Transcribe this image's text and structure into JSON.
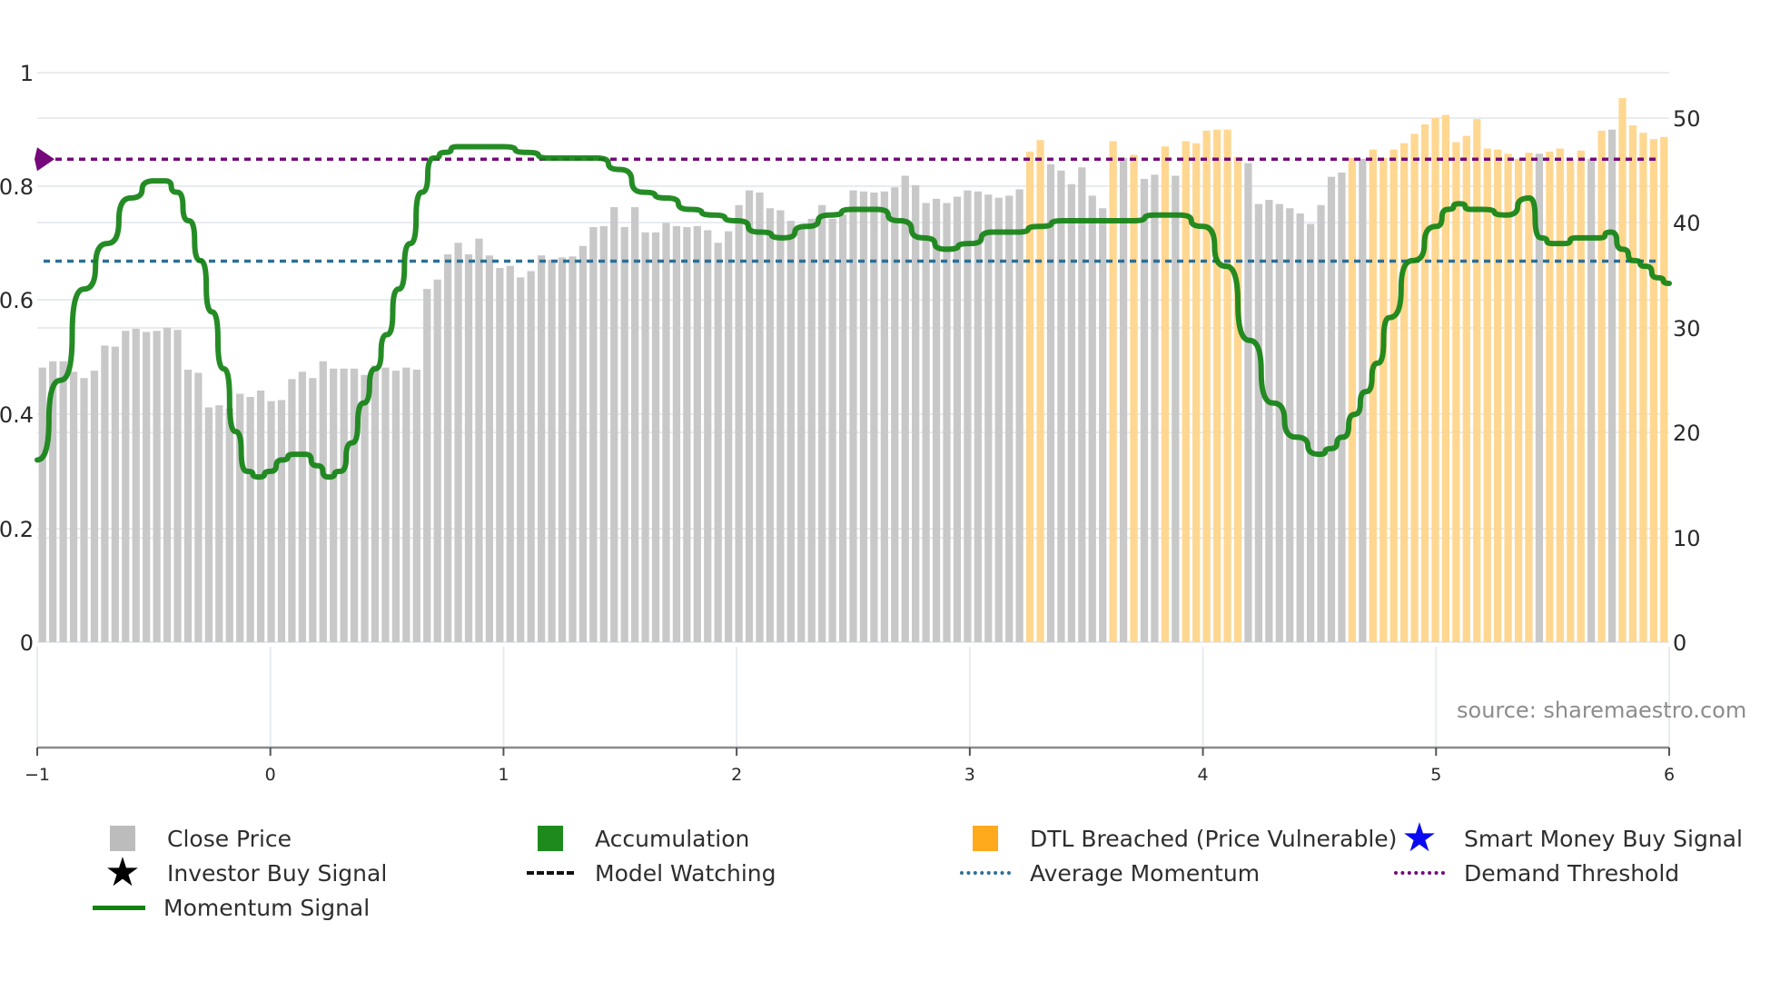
{
  "chart_data": {
    "type": "bar",
    "title": "",
    "xlabel": "",
    "ylabel_left": "",
    "ylabel_right": "",
    "x_axis": {
      "range": [
        -1,
        6
      ],
      "ticks": [
        "−1",
        "0",
        "1",
        "2",
        "3",
        "4",
        "5",
        "6"
      ]
    },
    "y_left": {
      "range": [
        0,
        1
      ],
      "ticks": [
        "0",
        "0.2",
        "0.4",
        "0.6",
        "0.8",
        "1"
      ]
    },
    "y_right": {
      "range": [
        0,
        62.5
      ],
      "ticks": [
        "0",
        "10",
        "20",
        "30",
        "40",
        "50"
      ]
    },
    "grid": true,
    "legend_position": "bottom",
    "annotation": "source: sharemaestro.com",
    "series": [
      {
        "name": "Close Price",
        "type": "bar",
        "axis": "right",
        "color": "#c8c8c8",
        "values": [
          26.2,
          26.8,
          26.8,
          25.8,
          25.2,
          25.9,
          28.3,
          28.2,
          29.7,
          29.9,
          29.6,
          29.7,
          30.0,
          29.8,
          26.0,
          25.7,
          22.4,
          22.6,
          22.3,
          23.7,
          23.4,
          24.0,
          23.0,
          23.1,
          25.1,
          25.8,
          25.2,
          26.8,
          26.1,
          26.1,
          26.1,
          25.5,
          26.4,
          26.2,
          25.9,
          26.2,
          26.0,
          33.7,
          34.6,
          37.0,
          38.1,
          37.0,
          38.5,
          36.9,
          35.7,
          35.9,
          34.8,
          35.4,
          36.9,
          36.5,
          36.7,
          36.8,
          37.8,
          39.6,
          39.7,
          41.5,
          39.6,
          41.5,
          39.1,
          39.1,
          40.0,
          39.7,
          39.6,
          39.7,
          39.3,
          38.1,
          39.2,
          41.7,
          43.1,
          42.9,
          41.4,
          41.2,
          40.2,
          39.6,
          40.4,
          41.7,
          40.4,
          40.8,
          43.1,
          43.0,
          42.9,
          43.0,
          43.4,
          44.5,
          43.6,
          41.9,
          42.3,
          41.9,
          42.5,
          43.1,
          43.0,
          42.7,
          42.4,
          42.6,
          43.2,
          46.8,
          47.9,
          45.6,
          45.0,
          43.7,
          45.3,
          42.6,
          41.4,
          47.8,
          46.2,
          46.5,
          44.2,
          44.6,
          47.3,
          44.5,
          47.8,
          47.6,
          48.8,
          48.9,
          48.9,
          46.3,
          45.7,
          41.8,
          42.2,
          41.8,
          41.4,
          40.9,
          39.9,
          41.7,
          44.4,
          44.8,
          46.2,
          46.1,
          47.0,
          46.2,
          47.0,
          47.6,
          48.5,
          49.4,
          50.0,
          50.3,
          47.7,
          48.3,
          49.9,
          47.1,
          47.0,
          46.6,
          46.1,
          46.7,
          46.6,
          46.8,
          47.1,
          46.1,
          46.9,
          46.1,
          48.8,
          48.9,
          51.9,
          49.3,
          48.6,
          48.0,
          48.2
        ],
        "dtl_breached": [
          0,
          0,
          0,
          0,
          0,
          0,
          0,
          0,
          0,
          0,
          0,
          0,
          0,
          0,
          0,
          0,
          0,
          0,
          0,
          0,
          0,
          0,
          0,
          0,
          0,
          0,
          0,
          0,
          0,
          0,
          0,
          0,
          0,
          0,
          0,
          0,
          0,
          0,
          0,
          0,
          0,
          0,
          0,
          0,
          0,
          0,
          0,
          0,
          0,
          0,
          0,
          0,
          0,
          0,
          0,
          0,
          0,
          0,
          0,
          0,
          0,
          0,
          0,
          0,
          0,
          0,
          0,
          0,
          0,
          0,
          0,
          0,
          0,
          0,
          0,
          0,
          0,
          0,
          0,
          0,
          0,
          0,
          0,
          0,
          0,
          0,
          0,
          0,
          0,
          0,
          0,
          0,
          0,
          0,
          0,
          1,
          1,
          0,
          0,
          0,
          0,
          0,
          0,
          1,
          0,
          1,
          0,
          0,
          1,
          0,
          1,
          1,
          1,
          1,
          1,
          1,
          0,
          0,
          0,
          0,
          0,
          0,
          0,
          0,
          0,
          0,
          1,
          0,
          1,
          1,
          1,
          1,
          1,
          1,
          1,
          1,
          1,
          1,
          1,
          1,
          1,
          1,
          1,
          1,
          0,
          1,
          1,
          1,
          1,
          0,
          1,
          0,
          1,
          1,
          1,
          1,
          1
        ]
      },
      {
        "name": "Momentum Signal",
        "type": "line",
        "axis": "left",
        "color": "#138a13",
        "x": [
          -1.0,
          -0.9,
          -0.8,
          -0.7,
          -0.6,
          -0.5,
          -0.45,
          -0.4,
          -0.35,
          -0.3,
          -0.25,
          -0.2,
          -0.15,
          -0.1,
          -0.05,
          0.0,
          0.05,
          0.1,
          0.15,
          0.2,
          0.25,
          0.3,
          0.35,
          0.4,
          0.45,
          0.5,
          0.55,
          0.6,
          0.65,
          0.7,
          0.75,
          0.8,
          0.85,
          0.9,
          0.95,
          1.0,
          1.1,
          1.2,
          1.3,
          1.4,
          1.5,
          1.6,
          1.7,
          1.8,
          1.9,
          2.0,
          2.1,
          2.2,
          2.3,
          2.4,
          2.5,
          2.6,
          2.7,
          2.8,
          2.9,
          3.0,
          3.1,
          3.2,
          3.3,
          3.4,
          3.5,
          3.6,
          3.7,
          3.8,
          3.9,
          4.0,
          4.1,
          4.2,
          4.3,
          4.4,
          4.5,
          4.55,
          4.6,
          4.65,
          4.7,
          4.75,
          4.8,
          4.9,
          5.0,
          5.05,
          5.1,
          5.15,
          5.2,
          5.3,
          5.4,
          5.45,
          5.5,
          5.55,
          5.6,
          5.7,
          5.75,
          5.8,
          5.85,
          5.9,
          5.95,
          6.0
        ],
        "values": [
          0.32,
          0.46,
          0.62,
          0.7,
          0.78,
          0.81,
          0.81,
          0.79,
          0.74,
          0.67,
          0.58,
          0.48,
          0.37,
          0.3,
          0.29,
          0.3,
          0.32,
          0.33,
          0.33,
          0.31,
          0.29,
          0.3,
          0.35,
          0.42,
          0.48,
          0.54,
          0.62,
          0.7,
          0.79,
          0.85,
          0.86,
          0.87,
          0.87,
          0.87,
          0.87,
          0.87,
          0.86,
          0.85,
          0.85,
          0.85,
          0.83,
          0.79,
          0.78,
          0.76,
          0.75,
          0.74,
          0.72,
          0.71,
          0.73,
          0.75,
          0.76,
          0.76,
          0.74,
          0.71,
          0.69,
          0.7,
          0.72,
          0.72,
          0.73,
          0.74,
          0.74,
          0.74,
          0.74,
          0.75,
          0.75,
          0.73,
          0.66,
          0.53,
          0.42,
          0.36,
          0.33,
          0.34,
          0.36,
          0.4,
          0.44,
          0.49,
          0.57,
          0.67,
          0.73,
          0.76,
          0.77,
          0.76,
          0.76,
          0.75,
          0.78,
          0.71,
          0.7,
          0.7,
          0.71,
          0.71,
          0.72,
          0.69,
          0.67,
          0.66,
          0.64,
          0.63
        ]
      },
      {
        "name": "Average Momentum",
        "type": "hline",
        "axis": "left",
        "color": "#2b6f96",
        "value": 0.669
      },
      {
        "name": "Demand Threshold",
        "type": "hline",
        "axis": "left",
        "color": "#75087a",
        "value": 0.848
      }
    ],
    "legend": [
      "Close Price",
      "Accumulation",
      "DTL Breached (Price Vulnerable)",
      "Smart Money Buy Signal",
      "Investor Buy Signal",
      "Model Watching",
      "Average Momentum",
      "Demand Threshold",
      "Momentum Signal"
    ]
  },
  "axes": {
    "left_ticks": [
      {
        "label": "1",
        "y": 80
      },
      {
        "label": "0.8",
        "y": 205
      },
      {
        "label": "0.6",
        "y": 330
      },
      {
        "label": "0.4",
        "y": 456
      },
      {
        "label": "0.2",
        "y": 582
      },
      {
        "label": "0",
        "y": 707
      }
    ],
    "right_ticks": [
      {
        "label": "50",
        "y": 130
      },
      {
        "label": "40",
        "y": 245
      },
      {
        "label": "30",
        "y": 361
      },
      {
        "label": "20",
        "y": 476
      },
      {
        "label": "10",
        "y": 592
      },
      {
        "label": "0",
        "y": 707
      }
    ],
    "x_ticks": [
      "−1",
      "0",
      "1",
      "2",
      "3",
      "4",
      "5",
      "6"
    ]
  },
  "source": "source: sharemaestro.com",
  "legend": {
    "close_price": "Close Price",
    "accumulation": "Accumulation",
    "dtl_breached": "DTL Breached (Price Vulnerable)",
    "smart_money": "Smart Money Buy Signal",
    "investor_buy": "Investor Buy Signal",
    "model_watching": "Model Watching",
    "average_momentum": "Average Momentum",
    "demand_threshold": "Demand Threshold",
    "momentum_signal": "Momentum Signal"
  },
  "colors": {
    "bar_gray": "#c8c8c8",
    "bar_orange": "#ffd58a",
    "accumulation": "#1e8a1e",
    "dtl": "#ffaa1d",
    "smart_money": "#0a0af0",
    "momentum": "#128212",
    "avg_momentum": "#2b6f96",
    "demand": "#75087a",
    "grid": "#e8ecf0",
    "axis": "#8a8a8a"
  }
}
